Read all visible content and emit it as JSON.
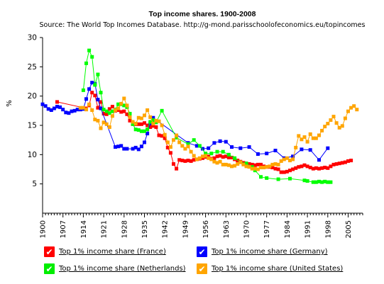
{
  "chart_data": {
    "type": "line",
    "title": "Top income shares. 1900-2008",
    "subtitle": "Source: The World Top Incomes Database. http://g-mond.parisschoolofeconomics.eu/topincomes",
    "xlabel": "",
    "ylabel": "%",
    "xlim": [
      1900,
      2010
    ],
    "ylim": [
      0,
      30
    ],
    "x_ticks": [
      1900,
      1907,
      1914,
      1921,
      1928,
      1935,
      1942,
      1949,
      1956,
      1963,
      1970,
      1977,
      1984,
      1991,
      1998,
      2005
    ],
    "y_ticks": [
      5,
      10,
      15,
      20,
      25,
      30
    ],
    "grid": false,
    "legend_position": "bottom",
    "series": [
      {
        "name": "Top 1% income share (France)",
        "color": "#ff0000",
        "points": [
          [
            1905,
            19.0
          ],
          [
            1915,
            17.9
          ],
          [
            1916,
            18.4
          ],
          [
            1917,
            20.6
          ],
          [
            1918,
            20.1
          ],
          [
            1919,
            18.0
          ],
          [
            1920,
            19.0
          ],
          [
            1921,
            17.0
          ],
          [
            1922,
            16.9
          ],
          [
            1923,
            17.8
          ],
          [
            1924,
            18.2
          ],
          [
            1925,
            17.5
          ],
          [
            1926,
            17.6
          ],
          [
            1927,
            17.3
          ],
          [
            1928,
            17.4
          ],
          [
            1929,
            16.9
          ],
          [
            1930,
            15.8
          ],
          [
            1931,
            15.2
          ],
          [
            1932,
            15.2
          ],
          [
            1933,
            15.2
          ],
          [
            1934,
            15.2
          ],
          [
            1935,
            15.4
          ],
          [
            1936,
            15.0
          ],
          [
            1937,
            14.7
          ],
          [
            1938,
            14.9
          ],
          [
            1939,
            14.7
          ],
          [
            1940,
            13.3
          ],
          [
            1941,
            13.2
          ],
          [
            1942,
            12.8
          ],
          [
            1943,
            11.2
          ],
          [
            1944,
            10.3
          ],
          [
            1945,
            8.4
          ],
          [
            1946,
            7.6
          ],
          [
            1947,
            9.1
          ],
          [
            1948,
            9.0
          ],
          [
            1949,
            8.9
          ],
          [
            1950,
            9.0
          ],
          [
            1951,
            8.9
          ],
          [
            1952,
            9.1
          ],
          [
            1953,
            9.2
          ],
          [
            1954,
            9.3
          ],
          [
            1955,
            9.4
          ],
          [
            1956,
            9.6
          ],
          [
            1957,
            9.7
          ],
          [
            1958,
            9.3
          ],
          [
            1959,
            9.4
          ],
          [
            1960,
            9.7
          ],
          [
            1961,
            9.8
          ],
          [
            1962,
            9.6
          ],
          [
            1963,
            9.7
          ],
          [
            1964,
            9.5
          ],
          [
            1965,
            9.5
          ],
          [
            1966,
            9.2
          ],
          [
            1967,
            9.0
          ],
          [
            1968,
            8.8
          ],
          [
            1969,
            8.6
          ],
          [
            1970,
            8.5
          ],
          [
            1971,
            8.4
          ],
          [
            1972,
            8.3
          ],
          [
            1973,
            8.2
          ],
          [
            1974,
            8.3
          ],
          [
            1975,
            8.3
          ],
          [
            1976,
            8.0
          ],
          [
            1977,
            7.9
          ],
          [
            1978,
            7.9
          ],
          [
            1979,
            7.8
          ],
          [
            1980,
            7.6
          ],
          [
            1981,
            7.5
          ],
          [
            1982,
            7.0
          ],
          [
            1983,
            7.0
          ],
          [
            1984,
            7.1
          ],
          [
            1985,
            7.3
          ],
          [
            1986,
            7.5
          ],
          [
            1987,
            7.7
          ],
          [
            1988,
            7.9
          ],
          [
            1989,
            8.0
          ],
          [
            1990,
            8.2
          ],
          [
            1991,
            8.0
          ],
          [
            1992,
            7.8
          ],
          [
            1993,
            7.6
          ],
          [
            1994,
            7.7
          ],
          [
            1995,
            7.6
          ],
          [
            1996,
            7.7
          ],
          [
            1997,
            7.8
          ],
          [
            1998,
            7.7
          ],
          [
            1999,
            8.0
          ],
          [
            2000,
            8.3
          ],
          [
            2001,
            8.4
          ],
          [
            2002,
            8.5
          ],
          [
            2003,
            8.6
          ],
          [
            2004,
            8.7
          ],
          [
            2005,
            8.9
          ],
          [
            2006,
            9.0
          ]
        ]
      },
      {
        "name": "Top 1% income share (Germany)",
        "color": "#0000ff",
        "points": [
          [
            1900,
            18.6
          ],
          [
            1901,
            18.3
          ],
          [
            1902,
            17.8
          ],
          [
            1903,
            17.6
          ],
          [
            1904,
            17.9
          ],
          [
            1905,
            18.2
          ],
          [
            1906,
            18.1
          ],
          [
            1907,
            17.7
          ],
          [
            1908,
            17.2
          ],
          [
            1909,
            17.1
          ],
          [
            1910,
            17.4
          ],
          [
            1911,
            17.5
          ],
          [
            1912,
            17.7
          ],
          [
            1913,
            17.7
          ],
          [
            1914,
            17.8
          ],
          [
            1915,
            19.5
          ],
          [
            1916,
            21.2
          ],
          [
            1917,
            22.3
          ],
          [
            1918,
            22.1
          ],
          [
            1919,
            19.4
          ],
          [
            1920,
            17.9
          ],
          [
            1925,
            11.3
          ],
          [
            1926,
            11.4
          ],
          [
            1927,
            11.5
          ],
          [
            1928,
            11.0
          ],
          [
            1929,
            11.0
          ],
          [
            1931,
            11.0
          ],
          [
            1932,
            11.2
          ],
          [
            1933,
            10.9
          ],
          [
            1934,
            11.4
          ],
          [
            1935,
            12.1
          ],
          [
            1936,
            13.6
          ],
          [
            1937,
            15.3
          ],
          [
            1938,
            16.3
          ],
          [
            1950,
            12.0
          ],
          [
            1953,
            11.5
          ],
          [
            1955,
            11.0
          ],
          [
            1957,
            11.1
          ],
          [
            1959,
            12.0
          ],
          [
            1961,
            12.3
          ],
          [
            1963,
            12.2
          ],
          [
            1965,
            11.3
          ],
          [
            1968,
            11.1
          ],
          [
            1971,
            11.3
          ],
          [
            1974,
            10.1
          ],
          [
            1977,
            10.2
          ],
          [
            1980,
            10.7
          ],
          [
            1983,
            9.4
          ],
          [
            1986,
            9.7
          ],
          [
            1989,
            10.9
          ],
          [
            1992,
            10.8
          ],
          [
            1995,
            9.1
          ],
          [
            1998,
            11.1
          ]
        ]
      },
      {
        "name": "Top 1% income share (Netherlands)",
        "color": "#00ff00",
        "points": [
          [
            1914,
            21.0
          ],
          [
            1915,
            25.6
          ],
          [
            1916,
            27.8
          ],
          [
            1917,
            26.7
          ],
          [
            1918,
            21.9
          ],
          [
            1919,
            23.7
          ],
          [
            1920,
            20.6
          ],
          [
            1921,
            17.7
          ],
          [
            1922,
            17.4
          ],
          [
            1923,
            17.1
          ],
          [
            1924,
            17.4
          ],
          [
            1925,
            17.7
          ],
          [
            1926,
            18.6
          ],
          [
            1927,
            18.6
          ],
          [
            1928,
            18.4
          ],
          [
            1929,
            18.1
          ],
          [
            1930,
            17.0
          ],
          [
            1931,
            15.2
          ],
          [
            1932,
            14.3
          ],
          [
            1933,
            14.2
          ],
          [
            1934,
            14.0
          ],
          [
            1935,
            14.0
          ],
          [
            1936,
            14.3
          ],
          [
            1937,
            15.6
          ],
          [
            1938,
            15.9
          ],
          [
            1939,
            15.5
          ],
          [
            1941,
            17.5
          ],
          [
            1946,
            12.9
          ],
          [
            1950,
            11.8
          ],
          [
            1952,
            12.5
          ],
          [
            1954,
            11.5
          ],
          [
            1956,
            10.2
          ],
          [
            1958,
            10.2
          ],
          [
            1960,
            10.5
          ],
          [
            1962,
            10.5
          ],
          [
            1964,
            10.0
          ],
          [
            1966,
            9.4
          ],
          [
            1968,
            8.7
          ],
          [
            1970,
            8.5
          ],
          [
            1972,
            7.9
          ],
          [
            1973,
            7.3
          ],
          [
            1975,
            6.2
          ],
          [
            1977,
            6.0
          ],
          [
            1981,
            5.8
          ],
          [
            1985,
            5.9
          ],
          [
            1990,
            5.6
          ],
          [
            1991,
            5.5
          ],
          [
            1993,
            5.3
          ],
          [
            1994,
            5.3
          ],
          [
            1995,
            5.4
          ],
          [
            1996,
            5.3
          ],
          [
            1997,
            5.4
          ],
          [
            1998,
            5.3
          ],
          [
            1999,
            5.3
          ]
        ]
      },
      {
        "name": "Top 1% income share (United States)",
        "color": "#ffa500",
        "points": [
          [
            1913,
            18.0
          ],
          [
            1914,
            18.0
          ],
          [
            1915,
            17.7
          ],
          [
            1916,
            18.6
          ],
          [
            1917,
            17.6
          ],
          [
            1918,
            16.0
          ],
          [
            1919,
            15.8
          ],
          [
            1920,
            14.5
          ],
          [
            1921,
            15.5
          ],
          [
            1922,
            15.2
          ],
          [
            1923,
            14.7
          ],
          [
            1924,
            16.6
          ],
          [
            1925,
            17.6
          ],
          [
            1926,
            17.9
          ],
          [
            1927,
            18.7
          ],
          [
            1928,
            19.6
          ],
          [
            1929,
            18.4
          ],
          [
            1930,
            16.4
          ],
          [
            1931,
            15.6
          ],
          [
            1932,
            15.3
          ],
          [
            1933,
            16.3
          ],
          [
            1934,
            16.2
          ],
          [
            1935,
            16.7
          ],
          [
            1936,
            17.6
          ],
          [
            1937,
            16.4
          ],
          [
            1938,
            15.3
          ],
          [
            1939,
            15.8
          ],
          [
            1940,
            15.7
          ],
          [
            1941,
            15.0
          ],
          [
            1942,
            13.4
          ],
          [
            1943,
            12.1
          ],
          [
            1944,
            11.3
          ],
          [
            1945,
            12.5
          ],
          [
            1946,
            13.3
          ],
          [
            1947,
            12.1
          ],
          [
            1948,
            11.5
          ],
          [
            1949,
            11.0
          ],
          [
            1950,
            11.4
          ],
          [
            1951,
            10.5
          ],
          [
            1952,
            9.8
          ],
          [
            1953,
            9.2
          ],
          [
            1954,
            9.4
          ],
          [
            1955,
            9.7
          ],
          [
            1956,
            9.8
          ],
          [
            1957,
            9.4
          ],
          [
            1958,
            9.2
          ],
          [
            1959,
            8.8
          ],
          [
            1960,
            8.6
          ],
          [
            1961,
            8.8
          ],
          [
            1962,
            8.3
          ],
          [
            1963,
            8.3
          ],
          [
            1964,
            8.2
          ],
          [
            1965,
            8.0
          ],
          [
            1966,
            8.1
          ],
          [
            1967,
            8.4
          ],
          [
            1968,
            8.7
          ],
          [
            1969,
            8.3
          ],
          [
            1970,
            8.0
          ],
          [
            1971,
            7.9
          ],
          [
            1972,
            7.6
          ],
          [
            1973,
            7.6
          ],
          [
            1974,
            7.5
          ],
          [
            1975,
            7.8
          ],
          [
            1976,
            7.8
          ],
          [
            1977,
            7.9
          ],
          [
            1978,
            8.0
          ],
          [
            1979,
            8.3
          ],
          [
            1980,
            8.4
          ],
          [
            1981,
            8.3
          ],
          [
            1982,
            8.9
          ],
          [
            1983,
            9.2
          ],
          [
            1984,
            9.4
          ],
          [
            1985,
            9.0
          ],
          [
            1986,
            9.2
          ],
          [
            1987,
            11.2
          ],
          [
            1988,
            13.2
          ],
          [
            1989,
            12.6
          ],
          [
            1990,
            13.0
          ],
          [
            1991,
            12.2
          ],
          [
            1992,
            13.5
          ],
          [
            1993,
            12.8
          ],
          [
            1994,
            12.8
          ],
          [
            1995,
            13.3
          ],
          [
            1996,
            14.1
          ],
          [
            1997,
            14.8
          ],
          [
            1998,
            15.3
          ],
          [
            1999,
            15.9
          ],
          [
            2000,
            16.5
          ],
          [
            2001,
            15.4
          ],
          [
            2002,
            14.6
          ],
          [
            2003,
            14.9
          ],
          [
            2004,
            16.2
          ],
          [
            2005,
            17.4
          ],
          [
            2006,
            18.0
          ],
          [
            2007,
            18.3
          ],
          [
            2008,
            17.7
          ]
        ]
      }
    ]
  }
}
